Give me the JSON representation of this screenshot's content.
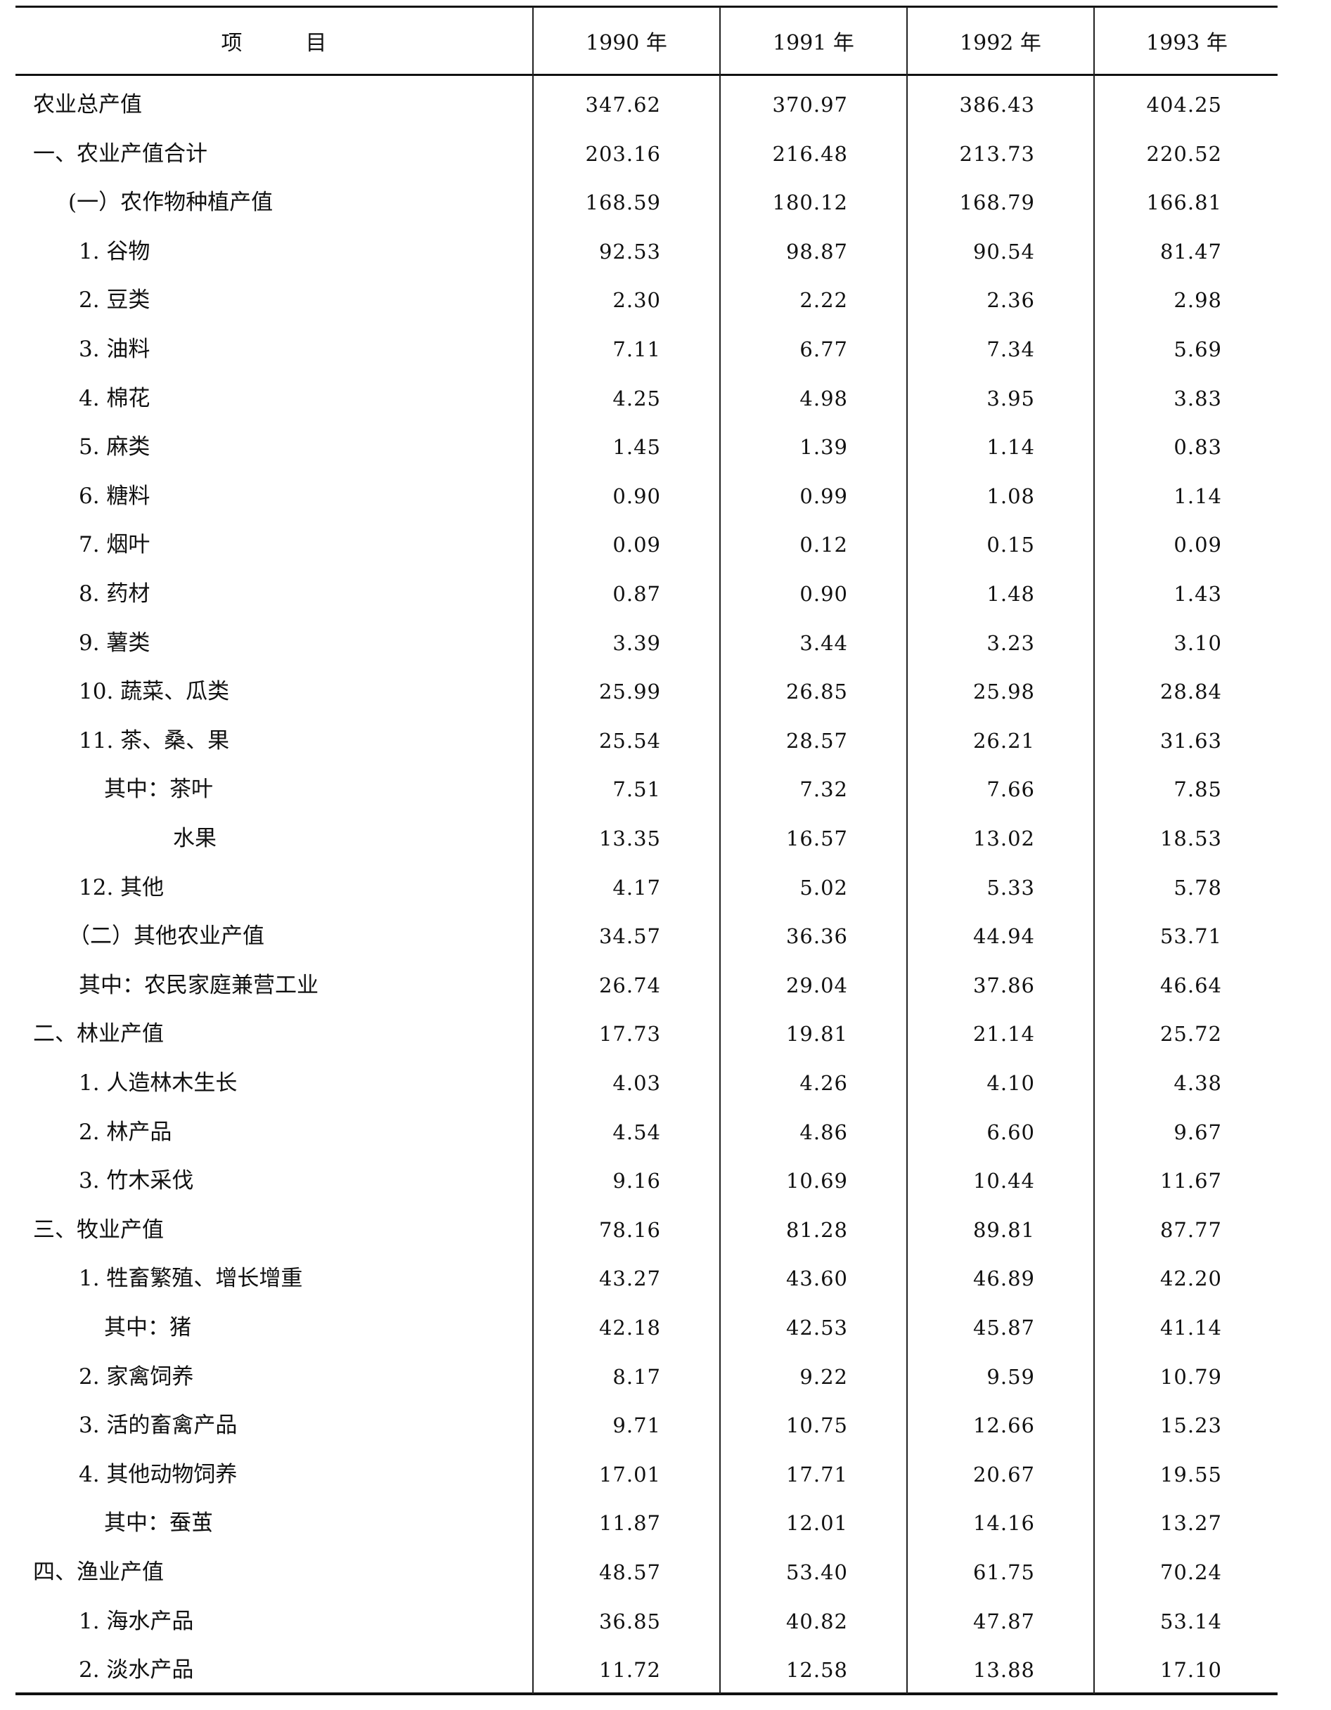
{
  "header": {
    "item": "项　　　目",
    "years": [
      "1990 年",
      "1991 年",
      "1992 年",
      "1993 年"
    ]
  },
  "rows": [
    {
      "label": "农业总产值",
      "level": 0,
      "values": [
        "347.62",
        "370.97",
        "386.43",
        "404.25"
      ]
    },
    {
      "label": "一、农业产值合计",
      "level": 0,
      "values": [
        "203.16",
        "216.48",
        "213.73",
        "220.52"
      ]
    },
    {
      "label": "(一）农作物种植产值",
      "level": 1,
      "values": [
        "168.59",
        "180.12",
        "168.79",
        "166.81"
      ]
    },
    {
      "label": "1. 谷物",
      "level": 2,
      "values": [
        "92.53",
        "98.87",
        "90.54",
        "81.47"
      ]
    },
    {
      "label": "2. 豆类",
      "level": 2,
      "values": [
        "2.30",
        "2.22",
        "2.36",
        "2.98"
      ]
    },
    {
      "label": "3. 油料",
      "level": 2,
      "values": [
        "7.11",
        "6.77",
        "7.34",
        "5.69"
      ]
    },
    {
      "label": "4. 棉花",
      "level": 2,
      "values": [
        "4.25",
        "4.98",
        "3.95",
        "3.83"
      ]
    },
    {
      "label": "5. 麻类",
      "level": 2,
      "values": [
        "1.45",
        "1.39",
        "1.14",
        "0.83"
      ]
    },
    {
      "label": "6. 糖料",
      "level": 2,
      "values": [
        "0.90",
        "0.99",
        "1.08",
        "1.14"
      ]
    },
    {
      "label": "7. 烟叶",
      "level": 2,
      "values": [
        "0.09",
        "0.12",
        "0.15",
        "0.09"
      ]
    },
    {
      "label": "8. 药材",
      "level": 2,
      "values": [
        "0.87",
        "0.90",
        "1.48",
        "1.43"
      ]
    },
    {
      "label": "9. 薯类",
      "level": 2,
      "values": [
        "3.39",
        "3.44",
        "3.23",
        "3.10"
      ]
    },
    {
      "label": "10. 蔬菜、瓜类",
      "level": 2,
      "values": [
        "25.99",
        "26.85",
        "25.98",
        "28.84"
      ]
    },
    {
      "label": "11. 茶、桑、果",
      "level": 2,
      "values": [
        "25.54",
        "28.57",
        "26.21",
        "31.63"
      ]
    },
    {
      "label": "其中：茶叶",
      "level": 3,
      "values": [
        "7.51",
        "7.32",
        "7.66",
        "7.85"
      ]
    },
    {
      "label": "水果",
      "level": 4,
      "values": [
        "13.35",
        "16.57",
        "13.02",
        "18.53"
      ]
    },
    {
      "label": "12. 其他",
      "level": 2,
      "values": [
        "4.17",
        "5.02",
        "5.33",
        "5.78"
      ]
    },
    {
      "label": "（二）其他农业产值",
      "level": 1,
      "values": [
        "34.57",
        "36.36",
        "44.94",
        "53.71"
      ]
    },
    {
      "label": "其中：农民家庭兼营工业",
      "level": 2,
      "values": [
        "26.74",
        "29.04",
        "37.86",
        "46.64"
      ]
    },
    {
      "label": "二、林业产值",
      "level": 0,
      "values": [
        "17.73",
        "19.81",
        "21.14",
        "25.72"
      ]
    },
    {
      "label": "1. 人造林木生长",
      "level": 2,
      "values": [
        "4.03",
        "4.26",
        "4.10",
        "4.38"
      ]
    },
    {
      "label": "2. 林产品",
      "level": 2,
      "values": [
        "4.54",
        "4.86",
        "6.60",
        "9.67"
      ]
    },
    {
      "label": "3. 竹木采伐",
      "level": 2,
      "values": [
        "9.16",
        "10.69",
        "10.44",
        "11.67"
      ]
    },
    {
      "label": "三、牧业产值",
      "level": 0,
      "values": [
        "78.16",
        "81.28",
        "89.81",
        "87.77"
      ]
    },
    {
      "label": "1. 牲畜繁殖、增长增重",
      "level": 2,
      "values": [
        "43.27",
        "43.60",
        "46.89",
        "42.20"
      ]
    },
    {
      "label": "其中：猪",
      "level": 3,
      "values": [
        "42.18",
        "42.53",
        "45.87",
        "41.14"
      ]
    },
    {
      "label": "2. 家禽饲养",
      "level": 2,
      "values": [
        "8.17",
        "9.22",
        "9.59",
        "10.79"
      ]
    },
    {
      "label": "3. 活的畜禽产品",
      "level": 2,
      "values": [
        "9.71",
        "10.75",
        "12.66",
        "15.23"
      ]
    },
    {
      "label": "4. 其他动物饲养",
      "level": 2,
      "values": [
        "17.01",
        "17.71",
        "20.67",
        "19.55"
      ]
    },
    {
      "label": "其中：蚕茧",
      "level": 3,
      "values": [
        "11.87",
        "12.01",
        "14.16",
        "13.27"
      ]
    },
    {
      "label": "四、渔业产值",
      "level": 0,
      "values": [
        "48.57",
        "53.40",
        "61.75",
        "70.24"
      ]
    },
    {
      "label": "1. 海水产品",
      "level": 2,
      "values": [
        "36.85",
        "40.82",
        "47.87",
        "53.14"
      ]
    },
    {
      "label": "2. 淡水产品",
      "level": 2,
      "values": [
        "11.72",
        "12.58",
        "13.88",
        "17.10"
      ]
    }
  ]
}
